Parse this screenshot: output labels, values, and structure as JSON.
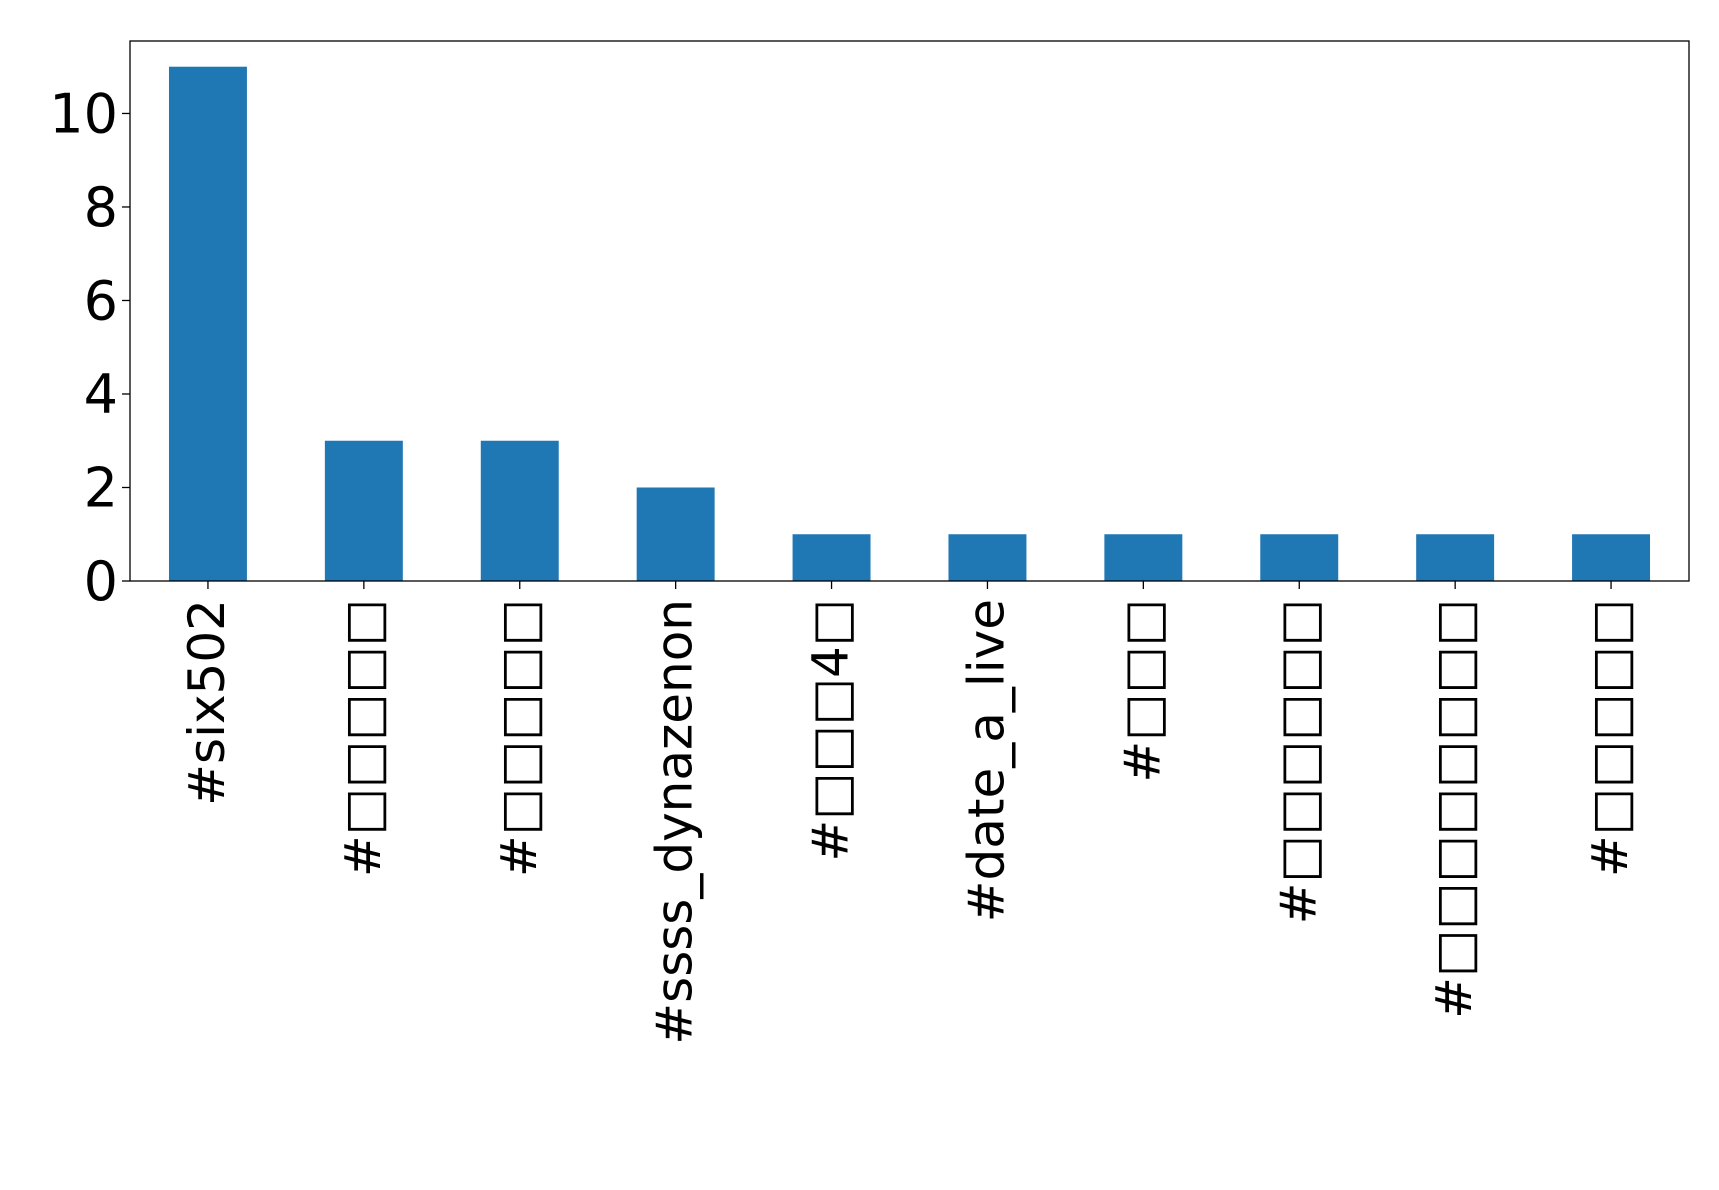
{
  "chart_data": {
    "type": "bar",
    "title": "",
    "xlabel": "",
    "ylabel": "",
    "categories": [
      "#six502",
      "#□□□□□",
      "#□□□□□",
      "#ssss_dynazenon",
      "#□□□4□",
      "#date_a_live",
      "#□□□",
      "#□□□□□□",
      "#□□□□□□□□",
      "#□□□□□"
    ],
    "values": [
      11,
      3,
      3,
      2,
      1,
      1,
      1,
      1,
      1,
      1
    ],
    "ylim": [
      0,
      11.55
    ],
    "yticks": [
      0,
      2,
      4,
      6,
      8,
      10
    ],
    "bar_color": "#1f77b4",
    "grid": false,
    "legend": "none"
  }
}
